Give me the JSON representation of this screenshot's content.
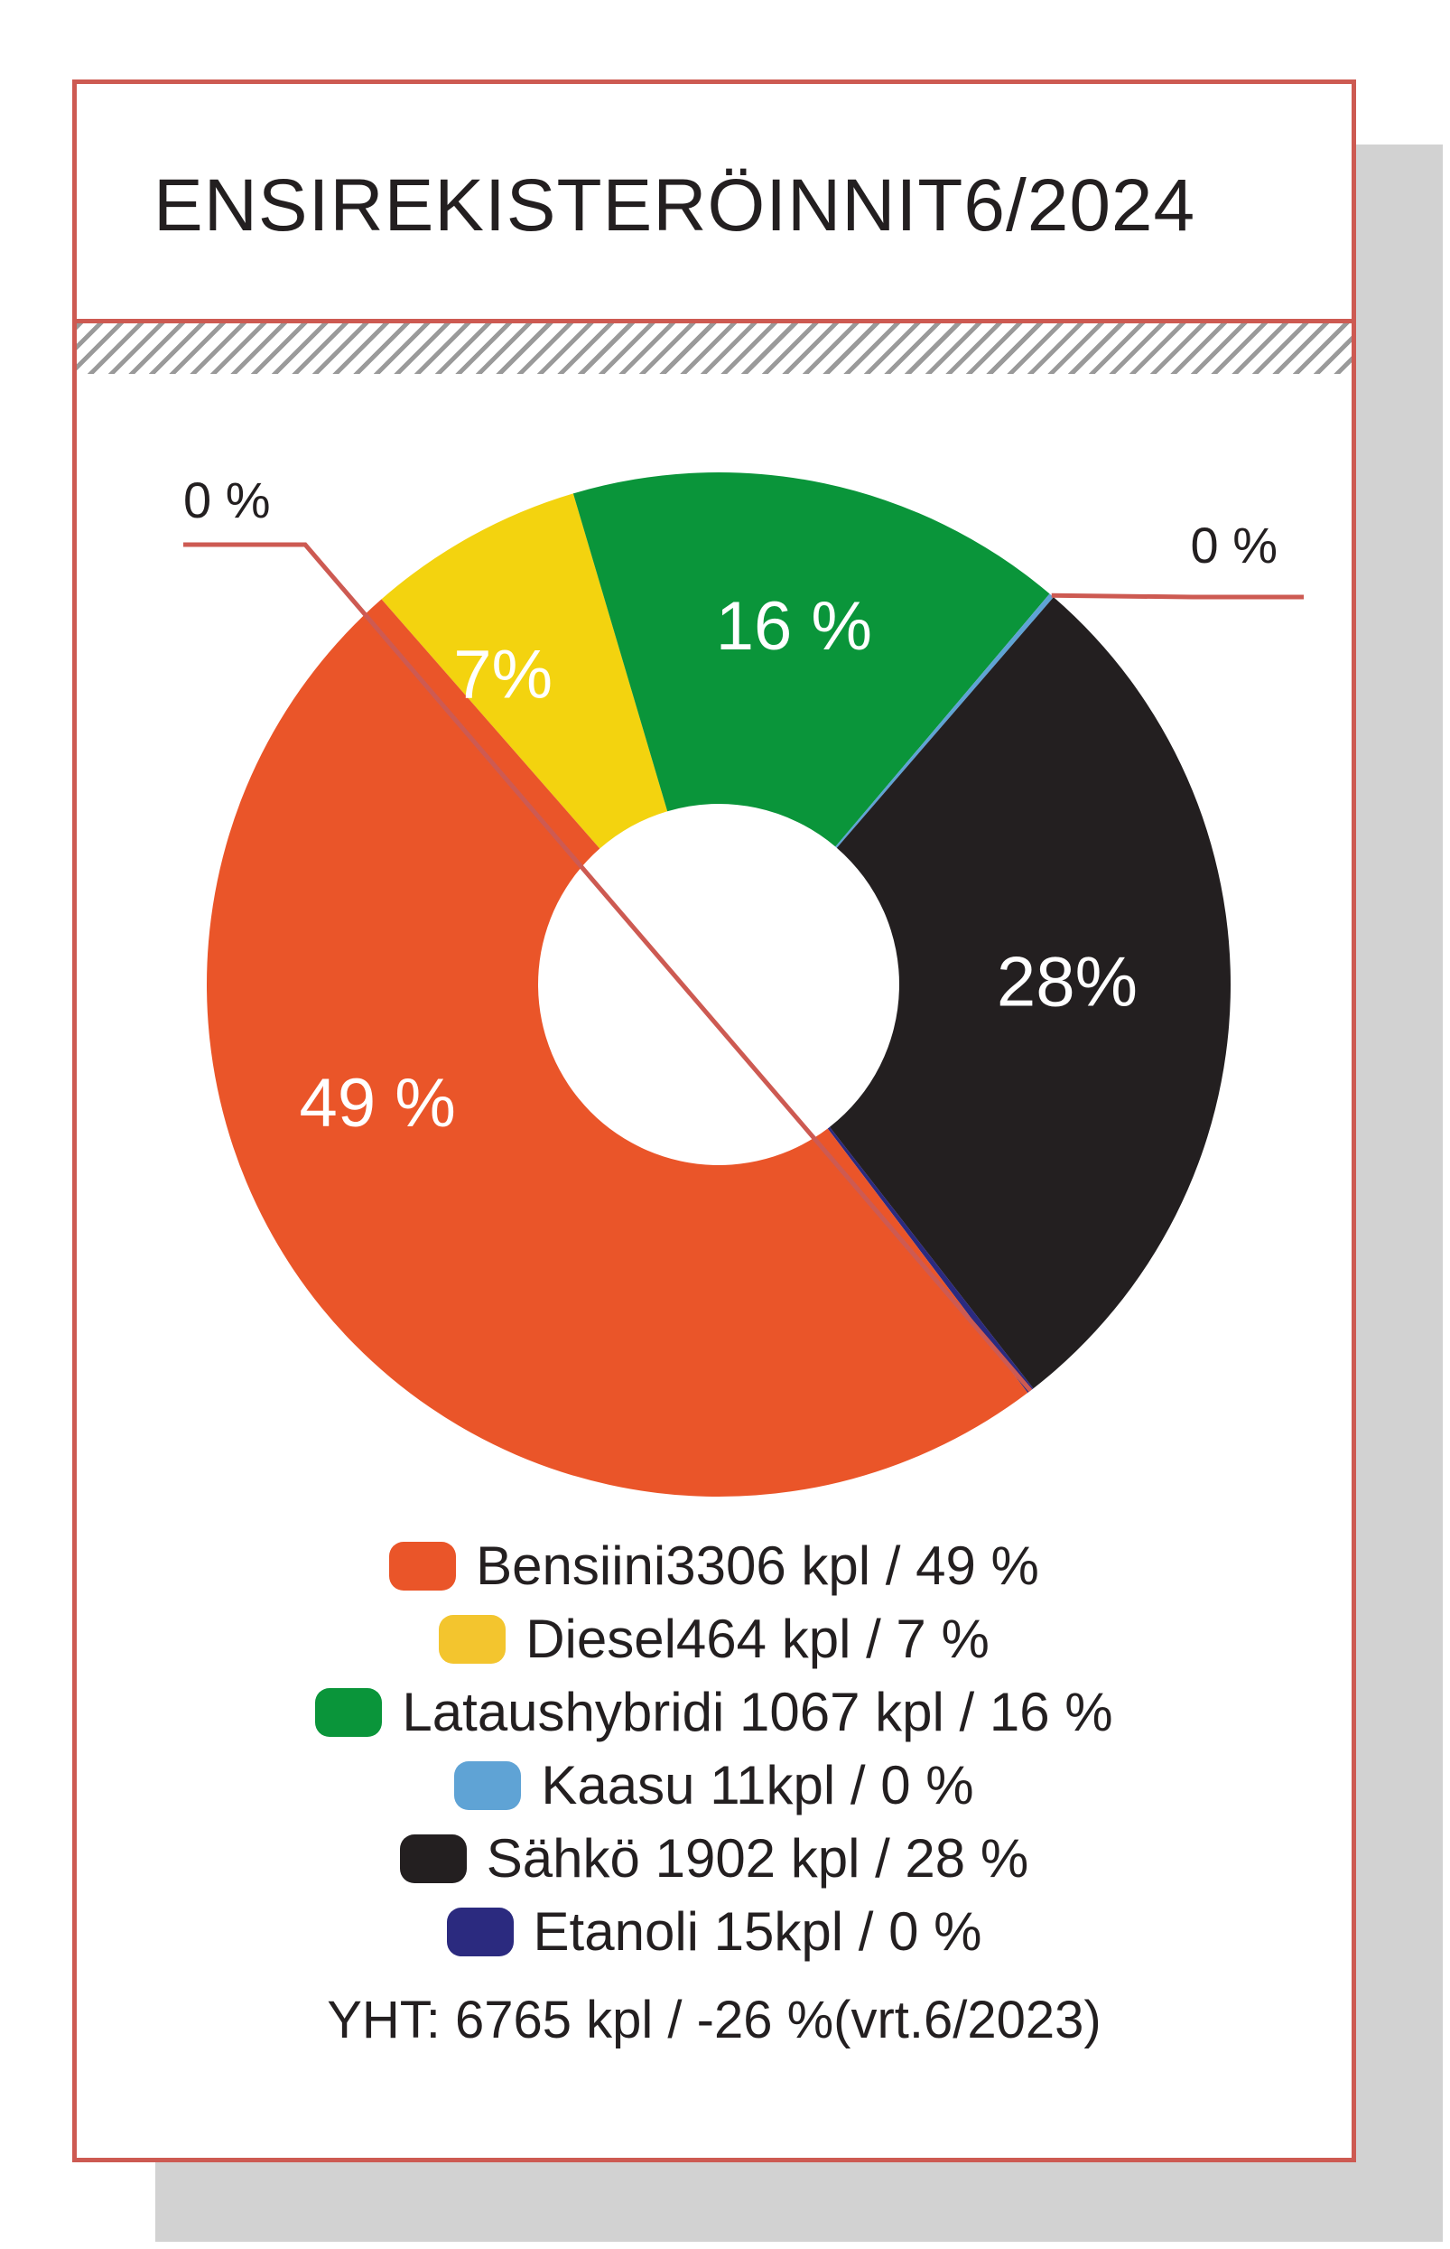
{
  "title": "ENSIREKISTERÖINNIT6/2024",
  "chart_data": {
    "type": "pie",
    "categories": [
      "Bensiini",
      "Diesel",
      "Lataushybridi",
      "Kaasu",
      "Sähkö",
      "Etanoli"
    ],
    "counts": [
      3306,
      464,
      1067,
      11,
      1902,
      15
    ],
    "percents": [
      49,
      7,
      16,
      0,
      28,
      0
    ],
    "slice_labels": [
      "49 %",
      "7%",
      "16 %",
      "0 %",
      "28%",
      "0 %"
    ],
    "colors": [
      "#ea5529",
      "#f3d30f",
      "#0a953a",
      "#5fa3d5",
      "#231f20",
      "#2b2a7f"
    ],
    "donut": true
  },
  "legend": [
    {
      "label": "Bensiini3306 kpl /  49 %",
      "color": "#ea5529"
    },
    {
      "label": "Diesel464 kpl /  7 %",
      "color": "#f3c52e"
    },
    {
      "label": "Lataushybridi 1067 kpl /  16 %",
      "color": "#0a953a"
    },
    {
      "label": "Kaasu 11kpl /  0 %",
      "color": "#5fa3d5"
    },
    {
      "label": "Sähkö 1902 kpl /  28 %",
      "color": "#231f20"
    },
    {
      "label": "Etanoli 15kpl /  0 %",
      "color": "#2b2a7f"
    }
  ],
  "total": "YHT:  6765 kpl /  -26 %(vrt.6/2023)",
  "colors": {
    "frame": "#cd5a52",
    "shadow": "#d2d2d2",
    "hatch": "#9a9a9a"
  }
}
